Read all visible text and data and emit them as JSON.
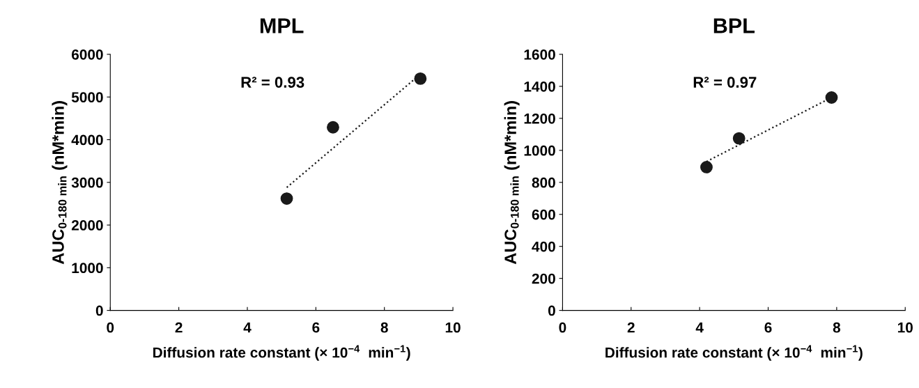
{
  "chart_data": [
    {
      "type": "scatter",
      "title": "MPL",
      "xlabel": "Diffusion rate constant (× 10$^{−4}$  min$^{−1}$)",
      "ylabel": "AUC$_{0-180 min}$ (nM*min)",
      "xlim": [
        0,
        10
      ],
      "xticks": [
        0,
        2,
        4,
        6,
        8,
        10
      ],
      "ylim": [
        0,
        6000
      ],
      "yticks": [
        0,
        1000,
        2000,
        3000,
        4000,
        5000,
        6000
      ],
      "grid": false,
      "marker": "circle",
      "annotations": [
        "R² = 0.93"
      ],
      "series": [
        {
          "color": "#1a1a1a",
          "x": [
            5.15,
            6.5,
            9.05
          ],
          "values": [
            2620,
            4290,
            5430
          ]
        },
        {
          "type": "line",
          "color": "#1a1a1a",
          "line_style": "dotted",
          "marker": "none",
          "x": [
            5.15,
            9.0
          ],
          "values": [
            2880,
            5500
          ]
        }
      ]
    },
    {
      "type": "scatter",
      "title": "BPL",
      "xlabel": "Diffusion rate constant (× 10$^{−4}$  min$^{−1}$)",
      "ylabel": "AUC$_{0-180 min}$ (nM*min)",
      "xlim": [
        0,
        10
      ],
      "xticks": [
        0,
        2,
        4,
        6,
        8,
        10
      ],
      "ylim": [
        0,
        1600
      ],
      "yticks": [
        0,
        200,
        400,
        600,
        800,
        1000,
        1200,
        1400,
        1600
      ],
      "grid": false,
      "marker": "circle",
      "annotations": [
        "R² = 0.97"
      ],
      "series": [
        {
          "color": "#1a1a1a",
          "x": [
            4.2,
            5.15,
            7.85
          ],
          "values": [
            895,
            1075,
            1330
          ]
        },
        {
          "type": "line",
          "color": "#1a1a1a",
          "line_style": "dotted",
          "marker": "none",
          "x": [
            4.2,
            7.85
          ],
          "values": [
            930,
            1330
          ]
        }
      ]
    }
  ]
}
